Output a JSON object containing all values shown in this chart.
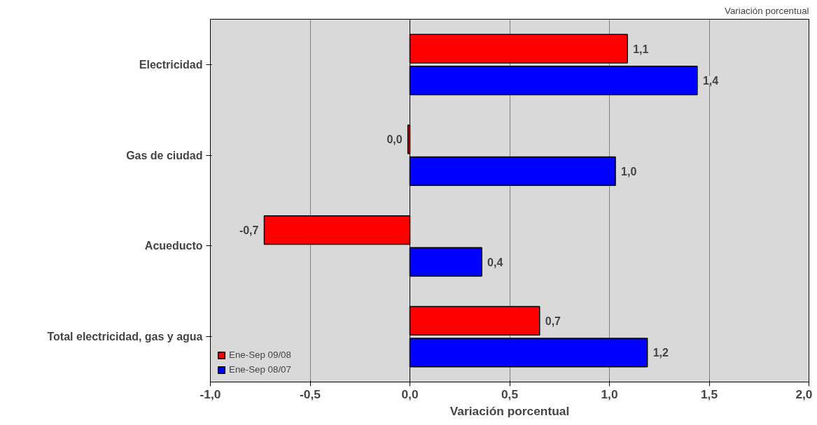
{
  "chart_data": {
    "type": "bar",
    "orientation": "horizontal",
    "xlabel": "Variación porcentual",
    "annotations": [
      "Variación porcentual"
    ],
    "categories": [
      "Electricidad",
      "Gas de ciudad",
      "Acueducto",
      "Total electricidad, gas y agua"
    ],
    "series": [
      {
        "name": "Ene-Sep 09/08",
        "color": "#ff0000",
        "values": [
          1.09,
          -0.01,
          -0.73,
          0.65
        ],
        "value_labels": [
          "1,1",
          "0,0",
          "-0,7",
          "0,7"
        ]
      },
      {
        "name": "Ene-Sep 08/07",
        "color": "#0000ff",
        "values": [
          1.44,
          1.03,
          0.36,
          1.19
        ],
        "value_labels": [
          "1,4",
          "1,0",
          "0,4",
          "1,2"
        ]
      }
    ],
    "xlim": [
      -1,
      2
    ],
    "xticks": [
      {
        "value": -1,
        "label": "-1,0"
      },
      {
        "value": -0.5,
        "label": "-0,5"
      },
      {
        "value": 0,
        "label": "0,0"
      },
      {
        "value": 0.5,
        "label": "0,5"
      },
      {
        "value": 1,
        "label": "1,0"
      },
      {
        "value": 1.5,
        "label": "1,5"
      },
      {
        "value": 2,
        "label": "2,0"
      }
    ],
    "grid": "x",
    "legend": "bottom left"
  }
}
